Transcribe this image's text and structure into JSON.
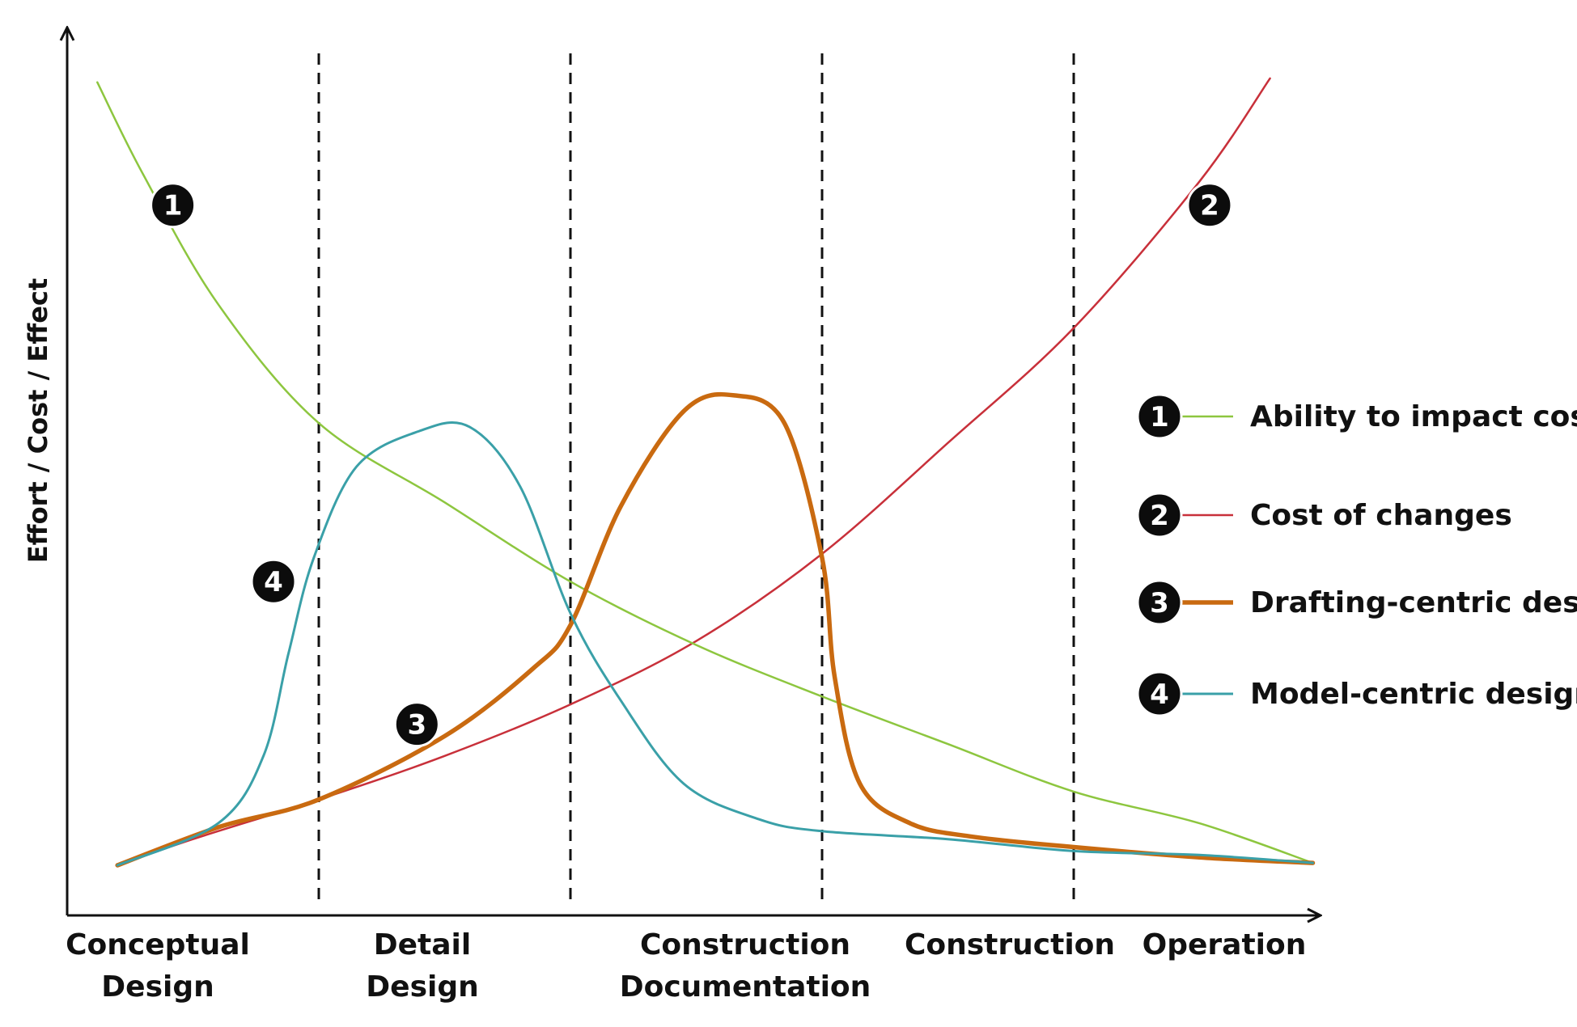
{
  "chart_data": {
    "type": "line",
    "title": "",
    "ylabel": "Effort / Cost / Effect",
    "xlabel": "",
    "grid": false,
    "legend_position": "right",
    "phases": [
      {
        "lines": [
          "Conceptual",
          "Design"
        ]
      },
      {
        "lines": [
          "Detail",
          "Design"
        ]
      },
      {
        "lines": [
          "Construction",
          "Documentation"
        ]
      },
      {
        "lines": [
          "Construction"
        ]
      },
      {
        "lines": [
          "Operation"
        ]
      }
    ],
    "phase_boundaries": [
      1,
      2,
      3,
      4
    ],
    "x_range": [
      0,
      5
    ],
    "y_range": [
      0,
      10
    ],
    "series": [
      {
        "id": "1",
        "name": "Ability to impact cost",
        "color": "#8dc63f",
        "width": 2.5,
        "points": [
          [
            0.12,
            9.9
          ],
          [
            0.3,
            8.75
          ],
          [
            0.6,
            7.1
          ],
          [
            1.0,
            5.6
          ],
          [
            1.5,
            4.6
          ],
          [
            2.0,
            3.6
          ],
          [
            2.5,
            2.8
          ],
          [
            3.0,
            2.15
          ],
          [
            3.5,
            1.55
          ],
          [
            4.0,
            0.95
          ],
          [
            4.5,
            0.55
          ],
          [
            4.95,
            0.05
          ]
        ]
      },
      {
        "id": "2",
        "name": "Cost of changes",
        "color": "#c8303a",
        "width": 2.5,
        "points": [
          [
            0.2,
            0.02
          ],
          [
            0.5,
            0.35
          ],
          [
            1.0,
            0.85
          ],
          [
            1.5,
            1.4
          ],
          [
            2.0,
            2.05
          ],
          [
            2.5,
            2.85
          ],
          [
            3.0,
            3.95
          ],
          [
            3.5,
            5.35
          ],
          [
            4.0,
            6.8
          ],
          [
            4.5,
            8.65
          ],
          [
            4.78,
            9.95
          ]
        ]
      },
      {
        "id": "3",
        "name": "Drafting-centric design",
        "color": "#c96a10",
        "width": 5.5,
        "points": [
          [
            0.2,
            0.02
          ],
          [
            0.6,
            0.5
          ],
          [
            1.0,
            0.85
          ],
          [
            1.5,
            1.65
          ],
          [
            1.85,
            2.5
          ],
          [
            2.0,
            3.05
          ],
          [
            2.2,
            4.55
          ],
          [
            2.45,
            5.75
          ],
          [
            2.65,
            5.95
          ],
          [
            2.85,
            5.6
          ],
          [
            3.0,
            3.9
          ],
          [
            3.05,
            2.4
          ],
          [
            3.15,
            1.05
          ],
          [
            3.35,
            0.55
          ],
          [
            3.6,
            0.38
          ],
          [
            4.0,
            0.25
          ],
          [
            4.5,
            0.12
          ],
          [
            4.95,
            0.05
          ]
        ]
      },
      {
        "id": "4",
        "name": "Model-centric design",
        "color": "#3aa0a8",
        "width": 3,
        "points": [
          [
            0.2,
            0.02
          ],
          [
            0.6,
            0.55
          ],
          [
            0.78,
            1.4
          ],
          [
            0.88,
            2.7
          ],
          [
            0.98,
            3.9
          ],
          [
            1.15,
            5.05
          ],
          [
            1.4,
            5.5
          ],
          [
            1.6,
            5.55
          ],
          [
            1.8,
            4.8
          ],
          [
            2.0,
            3.2
          ],
          [
            2.2,
            2.1
          ],
          [
            2.45,
            1.05
          ],
          [
            2.75,
            0.6
          ],
          [
            3.0,
            0.45
          ],
          [
            3.5,
            0.35
          ],
          [
            4.0,
            0.2
          ],
          [
            4.5,
            0.15
          ],
          [
            4.95,
            0.05
          ]
        ]
      }
    ],
    "markers": [
      {
        "label": "1",
        "series": "1",
        "x": 0.42,
        "y": 8.35
      },
      {
        "label": "2",
        "series": "2",
        "x": 4.54,
        "y": 8.35
      },
      {
        "label": "3",
        "series": "3",
        "x": 1.39,
        "y": 1.8
      },
      {
        "label": "4",
        "series": "4",
        "x": 0.82,
        "y": 3.6
      }
    ]
  }
}
